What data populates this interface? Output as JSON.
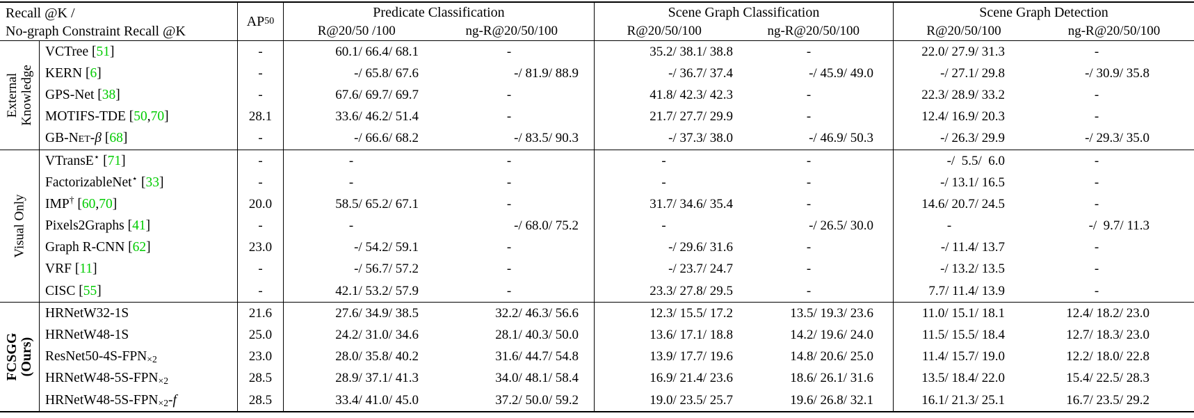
{
  "colors": {
    "citation_green": "#00cc00"
  },
  "table": {
    "header": {
      "col1_line1": "Recall @K /",
      "col1_line2": "No-graph Constraint Recall @K",
      "ap50": {
        "text": "AP",
        "sub": "50"
      },
      "sections": [
        {
          "title": "Predicate Classification",
          "sub": [
            "R@20/50 /100",
            "ng-R@20/50/100"
          ]
        },
        {
          "title": "Scene Graph Classification",
          "sub": [
            "R@20/50/100",
            "ng-R@20/50/100"
          ]
        },
        {
          "title": "Scene Graph Detection",
          "sub": [
            "R@20/50/100",
            "ng-R@20/50/100"
          ]
        }
      ]
    },
    "groups": [
      {
        "id": "external-knowledge",
        "label": [
          "External",
          "Knowledge"
        ],
        "bold": false,
        "rows": [
          {
            "method": [
              {
                "t": "VCTree"
              }
            ],
            "cite": [
              "51"
            ],
            "ap50": "-",
            "cells": [
              "60.1/ 66.4/ 68.1",
              "-",
              "35.2/ 38.1/ 38.8",
              "-",
              "22.0/ 27.9/ 31.3",
              "-"
            ]
          },
          {
            "method": [
              {
                "t": "KERN"
              }
            ],
            "cite": [
              "6"
            ],
            "ap50": "-",
            "cells": [
              "-/ 65.8/ 67.6",
              "-/ 81.9/ 88.9",
              "-/ 36.7/ 37.4",
              "-/ 45.9/ 49.0",
              "-/ 27.1/ 29.8",
              "-/ 30.9/ 35.8"
            ]
          },
          {
            "method": [
              {
                "t": "GPS-Net"
              }
            ],
            "cite": [
              "38"
            ],
            "ap50": "-",
            "cells": [
              "67.6/ 69.7/ 69.7",
              "-",
              "41.8/ 42.3/ 42.3",
              "-",
              "22.3/ 28.9/ 33.2",
              "-"
            ]
          },
          {
            "method": [
              {
                "t": "MOTIFS-TDE"
              }
            ],
            "cite": [
              "50",
              "70"
            ],
            "ap50": "28.1",
            "cells": [
              "33.6/ 46.2/ 51.4",
              "-",
              "21.7/ 27.7/ 29.9",
              "-",
              "12.4/ 16.9/ 20.3",
              "-"
            ]
          },
          {
            "method": [
              {
                "t": "GB-"
              },
              {
                "t": "Net",
                "s": "sc"
              },
              {
                "t": "-"
              },
              {
                "t": "β",
                "s": "i"
              }
            ],
            "cite": [
              "68"
            ],
            "ap50": "-",
            "cells": [
              "-/ 66.6/ 68.2",
              "-/ 83.5/ 90.3",
              "-/ 37.3/ 38.0",
              "-/ 46.9/ 50.3",
              "-/ 26.3/ 29.9",
              "-/ 29.3/ 35.0"
            ]
          }
        ]
      },
      {
        "id": "visual-only",
        "label": [
          "Visual Only"
        ],
        "bold": false,
        "rows": [
          {
            "method": [
              {
                "t": "VTransE"
              },
              {
                "t": "⋆",
                "s": "sup"
              }
            ],
            "cite": [
              "71"
            ],
            "ap50": "-",
            "cells": [
              "-",
              "-",
              "-",
              "-",
              "-/  5.5/  6.0",
              "-"
            ]
          },
          {
            "method": [
              {
                "t": "FactorizableNet"
              },
              {
                "t": "⋆",
                "s": "sup"
              }
            ],
            "cite": [
              "33"
            ],
            "ap50": "-",
            "cells": [
              "-",
              "-",
              "-",
              "-",
              "-/ 13.1/ 16.5",
              "-"
            ]
          },
          {
            "method": [
              {
                "t": "IMP"
              },
              {
                "t": "†",
                "s": "sup"
              }
            ],
            "cite": [
              "60",
              "70"
            ],
            "ap50": "20.0",
            "cells": [
              "58.5/ 65.2/ 67.1",
              "-",
              "31.7/ 34.6/ 35.4",
              "-",
              "14.6/ 20.7/ 24.5",
              "-"
            ]
          },
          {
            "method": [
              {
                "t": "Pixels2Graphs"
              }
            ],
            "cite": [
              "41"
            ],
            "ap50": "-",
            "cells": [
              "-",
              "-/ 68.0/ 75.2",
              "-",
              "-/ 26.5/ 30.0",
              "-",
              "-/  9.7/ 11.3"
            ]
          },
          {
            "method": [
              {
                "t": "Graph R-CNN"
              }
            ],
            "cite": [
              "62"
            ],
            "ap50": "23.0",
            "cells": [
              "-/ 54.2/ 59.1",
              "-",
              "-/ 29.6/ 31.6",
              "-",
              "-/ 11.4/ 13.7",
              "-"
            ]
          },
          {
            "method": [
              {
                "t": "VRF"
              }
            ],
            "cite": [
              "11"
            ],
            "ap50": "-",
            "cells": [
              "-/ 56.7/ 57.2",
              "-",
              "-/ 23.7/ 24.7",
              "-",
              "-/ 13.2/ 13.5",
              "-"
            ]
          },
          {
            "method": [
              {
                "t": "CISC"
              }
            ],
            "cite": [
              "55"
            ],
            "ap50": "-",
            "cells": [
              "42.1/ 53.2/ 57.9",
              "-",
              "23.3/ 27.8/ 29.5",
              "-",
              "7.7/ 11.4/ 13.9",
              "-"
            ]
          }
        ]
      },
      {
        "id": "fcsgg-ours",
        "label": [
          "FCSGG",
          "(Ours)"
        ],
        "bold": true,
        "rows": [
          {
            "method": [
              {
                "t": "HRNetW32-1S"
              }
            ],
            "cite": [],
            "ap50": "21.6",
            "cells": [
              "27.6/ 34.9/ 38.5",
              "32.2/ 46.3/ 56.6",
              "12.3/ 15.5/ 17.2",
              "13.5/ 19.3/ 23.6",
              "11.0/ 15.1/ 18.1",
              "12.4/ 18.2/ 23.0"
            ]
          },
          {
            "method": [
              {
                "t": "HRNetW48-1S"
              }
            ],
            "cite": [],
            "ap50": "25.0",
            "cells": [
              "24.2/ 31.0/ 34.6",
              "28.1/ 40.3/ 50.0",
              "13.6/ 17.1/ 18.8",
              "14.2/ 19.6/ 24.0",
              "11.5/ 15.5/ 18.4",
              "12.7/ 18.3/ 23.0"
            ]
          },
          {
            "method": [
              {
                "t": "ResNet50-4S-FPN"
              },
              {
                "t": "×2",
                "s": "sub"
              }
            ],
            "cite": [],
            "ap50": "23.0",
            "cells": [
              "28.0/ 35.8/ 40.2",
              "31.6/ 44.7/ 54.8",
              "13.9/ 17.7/ 19.6",
              "14.8/ 20.6/ 25.0",
              "11.4/ 15.7/ 19.0",
              "12.2/ 18.0/ 22.8"
            ]
          },
          {
            "method": [
              {
                "t": "HRNetW48-5S-FPN"
              },
              {
                "t": "×2",
                "s": "sub"
              }
            ],
            "cite": [],
            "ap50": "28.5",
            "cells": [
              "28.9/ 37.1/ 41.3",
              "34.0/ 48.1/ 58.4",
              "16.9/ 21.4/ 23.6",
              "18.6/ 26.1/ 31.6",
              "13.5/ 18.4/ 22.0",
              "15.4/ 22.5/ 28.3"
            ]
          },
          {
            "method": [
              {
                "t": "HRNetW48-5S-FPN"
              },
              {
                "t": "×2",
                "s": "sub"
              },
              {
                "t": "-"
              },
              {
                "t": "f",
                "s": "i"
              }
            ],
            "cite": [],
            "ap50": "28.5",
            "cells": [
              "33.4/ 41.0/ 45.0",
              "37.2/ 50.0/ 59.2",
              "19.0/ 23.5/ 25.7",
              "19.6/ 26.8/ 32.1",
              "16.1/ 21.3/ 25.1",
              "16.7/ 23.5/ 29.2"
            ]
          }
        ]
      }
    ]
  }
}
